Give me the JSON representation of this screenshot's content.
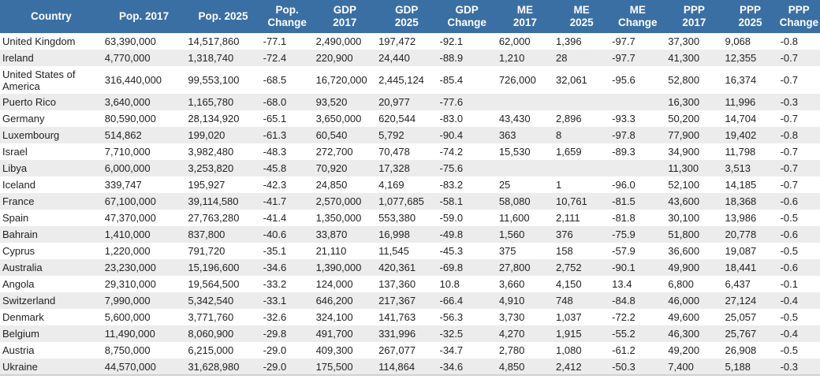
{
  "headers": [
    [
      "Country"
    ],
    [
      "Pop. 2017"
    ],
    [
      "Pop. 2025"
    ],
    [
      "Pop.",
      "Change"
    ],
    [
      "GDP",
      "2017"
    ],
    [
      "GDP",
      "2025"
    ],
    [
      "GDP",
      "Change"
    ],
    [
      "ME",
      "2017"
    ],
    [
      "ME",
      "2025"
    ],
    [
      "ME",
      "Change"
    ],
    [
      "PPP",
      "2017"
    ],
    [
      "PPP",
      "2025"
    ],
    [
      "PPP",
      "Change"
    ]
  ],
  "rows": [
    [
      "United Kingdom",
      "63,390,000",
      "14,517,860",
      "-77.1",
      "2,490,000",
      "197,472",
      "-92.1",
      "62,000",
      "1,396",
      "-97.7",
      "37,300",
      "9,068",
      "-0.8"
    ],
    [
      "Ireland",
      "4,770,000",
      "1,318,740",
      "-72.4",
      "220,900",
      "24,440",
      "-88.9",
      "1,210",
      "28",
      "-97.7",
      "41,300",
      "12,355",
      "-0.7"
    ],
    [
      "United States of America",
      "316,440,000",
      "99,553,100",
      "-68.5",
      "16,720,000",
      "2,445,124",
      "-85.4",
      "726,000",
      "32,061",
      "-95.6",
      "52,800",
      "16,374",
      "-0.7"
    ],
    [
      "Puerto Rico",
      "3,640,000",
      "1,165,780",
      "-68.0",
      "93,520",
      "20,977",
      "-77.6",
      "",
      "",
      "",
      "16,300",
      "11,996",
      "-0.3"
    ],
    [
      "Germany",
      "80,590,000",
      "28,134,920",
      "-65.1",
      "3,650,000",
      "620,544",
      "-83.0",
      "43,430",
      "2,896",
      "-93.3",
      "50,200",
      "14,704",
      "-0.7"
    ],
    [
      "Luxembourg",
      "514,862",
      "199,020",
      "-61.3",
      "60,540",
      "5,792",
      "-90.4",
      "363",
      "8",
      "-97.8",
      "77,900",
      "19,402",
      "-0.8"
    ],
    [
      "Israel",
      "7,710,000",
      "3,982,480",
      "-48.3",
      "272,700",
      "70,478",
      "-74.2",
      "15,530",
      "1,659",
      "-89.3",
      "34,900",
      "11,798",
      "-0.7"
    ],
    [
      "Libya",
      "6,000,000",
      "3,253,820",
      "-45.8",
      "70,920",
      "17,328",
      "-75.6",
      "",
      "",
      "",
      "11,300",
      "3,513",
      "-0.7"
    ],
    [
      "Iceland",
      "339,747",
      "195,927",
      "-42.3",
      "24,850",
      "4,169",
      "-83.2",
      "25",
      "1",
      "-96.0",
      "52,100",
      "14,185",
      "-0.7"
    ],
    [
      "France",
      "67,100,000",
      "39,114,580",
      "-41.7",
      "2,570,000",
      "1,077,685",
      "-58.1",
      "58,080",
      "10,761",
      "-81.5",
      "43,600",
      "18,368",
      "-0.6"
    ],
    [
      "Spain",
      "47,370,000",
      "27,763,280",
      "-41.4",
      "1,350,000",
      "553,380",
      "-59.0",
      "11,600",
      "2,111",
      "-81.8",
      "30,100",
      "13,986",
      "-0.5"
    ],
    [
      "Bahrain",
      "1,410,000",
      "837,800",
      "-40.6",
      "33,870",
      "16,998",
      "-49.8",
      "1,560",
      "376",
      "-75.9",
      "51,800",
      "20,778",
      "-0.6"
    ],
    [
      "Cyprus",
      "1,220,000",
      "791,720",
      "-35.1",
      "21,110",
      "11,545",
      "-45.3",
      "375",
      "158",
      "-57.9",
      "36,600",
      "19,087",
      "-0.5"
    ],
    [
      "Australia",
      "23,230,000",
      "15,196,600",
      "-34.6",
      "1,390,000",
      "420,361",
      "-69.8",
      "27,800",
      "2,752",
      "-90.1",
      "49,900",
      "18,441",
      "-0.6"
    ],
    [
      "Angola",
      "29,310,000",
      "19,564,500",
      "-33.2",
      "124,000",
      "137,360",
      "10.8",
      "3,660",
      "4,150",
      "13.4",
      "6,800",
      "6,437",
      "-0.1"
    ],
    [
      "Switzerland",
      "7,990,000",
      "5,342,540",
      "-33.1",
      "646,200",
      "217,367",
      "-66.4",
      "4,910",
      "748",
      "-84.8",
      "46,000",
      "27,124",
      "-0.4"
    ],
    [
      "Denmark",
      "5,600,000",
      "3,771,760",
      "-32.6",
      "324,100",
      "141,763",
      "-56.3",
      "3,730",
      "1,037",
      "-72.2",
      "49,600",
      "25,057",
      "-0.5"
    ],
    [
      "Belgium",
      "11,490,000",
      "8,060,900",
      "-29.8",
      "491,700",
      "331,996",
      "-32.5",
      "4,270",
      "1,915",
      "-55.2",
      "46,300",
      "25,767",
      "-0.4"
    ],
    [
      "Austria",
      "8,750,000",
      "6,215,000",
      "-29.0",
      "409,300",
      "267,077",
      "-34.7",
      "2,780",
      "1,080",
      "-61.2",
      "49,200",
      "26,908",
      "-0.5"
    ],
    [
      "Ukraine",
      "44,570,000",
      "31,628,980",
      "-29.0",
      "175,500",
      "114,864",
      "-34.6",
      "4,850",
      "2,412",
      "-50.3",
      "7,400",
      "5,188",
      "-0.3"
    ]
  ]
}
